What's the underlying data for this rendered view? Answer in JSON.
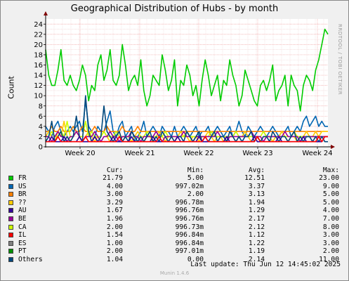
{
  "header": {
    "title": "Geographical Distribution of Hubs - by month",
    "watermark": "RRDTOOL / TOBI OETIKER",
    "version": "Munin 1.4.6"
  },
  "legend_headers": {
    "cur": "Cur:",
    "min": "Min:",
    "avg": "Avg:",
    "max": "Max:"
  },
  "legend": [
    {
      "name": "FR",
      "color": "#00cc00",
      "cur": "21.79",
      "min": "5.00",
      "avg": "12.51",
      "max": "23.00"
    },
    {
      "name": "US",
      "color": "#0066b3",
      "cur": "4.00",
      "min": "997.02m",
      "avg": "3.37",
      "max": "9.00"
    },
    {
      "name": "BR",
      "color": "#ff8000",
      "cur": "3.00",
      "min": "2.00",
      "avg": "3.13",
      "max": "5.00"
    },
    {
      "name": "??",
      "color": "#ffcc00",
      "cur": "3.29",
      "min": "996.78m",
      "avg": "1.94",
      "max": "5.00"
    },
    {
      "name": "AU",
      "color": "#330099",
      "cur": "1.67",
      "min": "996.76m",
      "avg": "1.29",
      "max": "4.00"
    },
    {
      "name": "BE",
      "color": "#990099",
      "cur": "1.96",
      "min": "996.76m",
      "avg": "2.17",
      "max": "7.00"
    },
    {
      "name": "CA",
      "color": "#ccff00",
      "cur": "2.00",
      "min": "996.73m",
      "avg": "2.12",
      "max": "8.00"
    },
    {
      "name": "IL",
      "color": "#ff0000",
      "cur": "1.54",
      "min": "996.84m",
      "avg": "1.12",
      "max": "3.00"
    },
    {
      "name": "ES",
      "color": "#808080",
      "cur": "1.00",
      "min": "996.84m",
      "avg": "1.22",
      "max": "3.00"
    },
    {
      "name": "PT",
      "color": "#008f00",
      "cur": "2.00",
      "min": "997.01m",
      "avg": "1.19",
      "max": "2.00"
    },
    {
      "name": "Others",
      "color": "#00487d",
      "cur": "1.04",
      "min": "0.00",
      "avg": "2.14",
      "max": "11.00"
    }
  ],
  "footer": {
    "last_update": "Last update:  Thu Jun 12 14:45:02 2025"
  },
  "chart_data": {
    "type": "line",
    "title": "Geographical Distribution of Hubs - by month",
    "ylabel": "Count",
    "ylim": [
      0,
      25
    ],
    "yticks": [
      0,
      2,
      4,
      6,
      8,
      10,
      12,
      14,
      16,
      18,
      20,
      22,
      24
    ],
    "xticks": [
      "Week 20",
      "Week 21",
      "Week 22",
      "Week 23",
      "Week 24"
    ],
    "grid": true,
    "series": [
      {
        "name": "FR",
        "color": "#00cc00",
        "values": [
          19,
          14,
          12,
          12,
          15,
          19,
          13,
          12,
          14,
          12,
          11,
          13,
          16,
          14,
          9,
          12,
          11,
          16,
          18,
          13,
          15,
          19,
          13,
          12,
          14,
          20,
          16,
          11,
          13,
          14,
          12,
          17,
          11,
          8,
          10,
          14,
          13,
          12,
          18,
          15,
          11,
          13,
          17,
          8,
          13,
          12,
          16,
          14,
          10,
          12,
          8,
          13,
          17,
          14,
          10,
          12,
          14,
          9,
          13,
          12,
          17,
          14,
          12,
          8,
          10,
          15,
          13,
          11,
          9,
          8,
          12,
          13,
          11,
          13,
          16,
          9,
          11,
          12,
          14,
          8,
          14,
          12,
          11,
          7,
          12,
          14,
          13,
          11,
          15,
          17,
          20,
          23,
          22
        ]
      },
      {
        "name": "US",
        "color": "#0066b3",
        "values": [
          4,
          3,
          2,
          4,
          5,
          3,
          2,
          3,
          4,
          3,
          4,
          5,
          3,
          9,
          4,
          3,
          2,
          4,
          3,
          3,
          5,
          7,
          3,
          2,
          4,
          5,
          2,
          3,
          4,
          1,
          2,
          3,
          5,
          2,
          3,
          4,
          3,
          2,
          4,
          3,
          3,
          2,
          4,
          2,
          3,
          4,
          3,
          2,
          3,
          4,
          2,
          3,
          3,
          4,
          2,
          3,
          4,
          3,
          2,
          3,
          4,
          2,
          3,
          5,
          3,
          2,
          4,
          3,
          2,
          3,
          4,
          3,
          2,
          3,
          4,
          3,
          2,
          3,
          3,
          4,
          2,
          3,
          4,
          3,
          5,
          6,
          4,
          5,
          6,
          4,
          5,
          4,
          4
        ]
      },
      {
        "name": "BR",
        "color": "#ff8000",
        "values": [
          3,
          3,
          4,
          3,
          3,
          4,
          3,
          3,
          3,
          4,
          3,
          3,
          4,
          3,
          3,
          3,
          4,
          3,
          3,
          3,
          4,
          3,
          3,
          3,
          3,
          4,
          3,
          3,
          3,
          3,
          4,
          3,
          3,
          3,
          3,
          3,
          3,
          3,
          3,
          3,
          3,
          3,
          3,
          3,
          3,
          3,
          3,
          3,
          3,
          3,
          3,
          3,
          3,
          3,
          3,
          3,
          3,
          3,
          3,
          3,
          3,
          3,
          3,
          3,
          3,
          3,
          3,
          3,
          3,
          3,
          3,
          3,
          3,
          3,
          3,
          3,
          3,
          3,
          3,
          3,
          3,
          3,
          3,
          3,
          3,
          3,
          3,
          3,
          3,
          3,
          3,
          3,
          3
        ]
      },
      {
        "name": "??",
        "color": "#ffcc00",
        "values": [
          2,
          3,
          2,
          1,
          3,
          2,
          5,
          2,
          1,
          2,
          3,
          2,
          1,
          2,
          3,
          2,
          1,
          2,
          2,
          3,
          2,
          1,
          2,
          2,
          3,
          1,
          2,
          2,
          1,
          2,
          3,
          2,
          1,
          2,
          2,
          1,
          2,
          3,
          2,
          1,
          2,
          2,
          1,
          2,
          3,
          2,
          2,
          1,
          2,
          2,
          1,
          2,
          2,
          3,
          2,
          1,
          2,
          2,
          1,
          2,
          2,
          2,
          1,
          2,
          2,
          3,
          2,
          1,
          2,
          2,
          1,
          2,
          2,
          2,
          1,
          2,
          2,
          3,
          2,
          1,
          2,
          2,
          1,
          2,
          2,
          3,
          2,
          2,
          3,
          2,
          3,
          3,
          3
        ]
      },
      {
        "name": "CA",
        "color": "#ccff00",
        "values": [
          2,
          2,
          3,
          2,
          2,
          3,
          2,
          5,
          2,
          2,
          3,
          2,
          2,
          5,
          2,
          3,
          2,
          2,
          2,
          3,
          2,
          2,
          2,
          3,
          2,
          2,
          2,
          2,
          3,
          2,
          2,
          2,
          2,
          3,
          2,
          2,
          2,
          2,
          2,
          3,
          2,
          2,
          2,
          2,
          2,
          2,
          3,
          2,
          2,
          2,
          2,
          2,
          2,
          2,
          3,
          2,
          2,
          2,
          2,
          2,
          2,
          2,
          3,
          2,
          2,
          2,
          2,
          2,
          2,
          2,
          2,
          3,
          2,
          2,
          2,
          2,
          2,
          2,
          2,
          2,
          2,
          3,
          2,
          2,
          2,
          2,
          2,
          2,
          2,
          2,
          2,
          2,
          2
        ]
      },
      {
        "name": "BE",
        "color": "#990099",
        "values": [
          2,
          2,
          1,
          2,
          3,
          2,
          2,
          1,
          2,
          2,
          3,
          2,
          1,
          2,
          2,
          2,
          3,
          2,
          1,
          2,
          2,
          3,
          2,
          2,
          1,
          2,
          2,
          2,
          3,
          2,
          2,
          1,
          2,
          2,
          2,
          2,
          3,
          2,
          1,
          2,
          2,
          2,
          2,
          2,
          2,
          3,
          2,
          2,
          1,
          2,
          2,
          2,
          2,
          2,
          2,
          2,
          3,
          2,
          2,
          1,
          2,
          2,
          2,
          2,
          2,
          2,
          2,
          3,
          2,
          2,
          2,
          1,
          2,
          2,
          2,
          2,
          2,
          2,
          3,
          2,
          2,
          2,
          2,
          1,
          2,
          2,
          2,
          2,
          2,
          2,
          2,
          2,
          2
        ]
      },
      {
        "name": "Others",
        "color": "#00487d",
        "values": [
          1,
          2,
          5,
          1,
          2,
          3,
          1,
          2,
          1,
          2,
          6,
          2,
          1,
          10,
          3,
          1,
          2,
          1,
          2,
          8,
          3,
          2,
          1,
          2,
          3,
          1,
          2,
          1,
          3,
          2,
          1,
          2,
          1,
          2,
          3,
          1,
          2,
          1,
          3,
          2,
          1,
          2,
          1,
          2,
          2,
          1,
          3,
          2,
          1,
          2,
          3,
          1,
          2,
          1,
          2,
          3,
          1,
          2,
          2,
          1,
          3,
          2,
          1,
          2,
          1,
          2,
          2,
          3,
          1,
          2,
          1,
          2,
          2,
          1,
          3,
          2,
          1,
          2,
          2,
          1,
          2,
          3,
          1,
          2,
          1,
          2,
          2,
          1,
          2,
          1,
          2,
          1,
          1
        ]
      },
      {
        "name": "AU",
        "color": "#330099",
        "values": [
          1,
          1,
          2,
          1,
          1,
          1,
          2,
          1,
          1,
          1,
          1,
          2,
          1,
          1,
          1,
          1,
          2,
          1,
          1,
          1,
          1,
          1,
          2,
          1,
          1,
          1,
          1,
          1,
          2,
          1,
          1,
          1,
          1,
          1,
          1,
          2,
          1,
          1,
          1,
          1,
          1,
          1,
          1,
          2,
          1,
          1,
          1,
          1,
          1,
          1,
          2,
          1,
          1,
          1,
          1,
          1,
          1,
          1,
          1,
          2,
          1,
          1,
          1,
          1,
          1,
          1,
          1,
          1,
          2,
          1,
          1,
          1,
          1,
          1,
          1,
          1,
          2,
          1,
          1,
          1,
          1,
          1,
          1,
          1,
          2,
          1,
          1,
          1,
          1,
          1,
          1,
          2,
          2
        ]
      },
      {
        "name": "IL",
        "color": "#ff0000",
        "values": [
          1,
          1,
          1,
          1,
          2,
          1,
          1,
          1,
          1,
          1,
          1,
          1,
          1,
          2,
          1,
          1,
          1,
          1,
          1,
          1,
          1,
          1,
          1,
          1,
          2,
          1,
          1,
          1,
          1,
          1,
          1,
          1,
          1,
          1,
          1,
          1,
          1,
          2,
          1,
          1,
          1,
          1,
          1,
          1,
          1,
          1,
          1,
          1,
          1,
          1,
          1,
          1,
          2,
          1,
          1,
          1,
          1,
          1,
          1,
          1,
          1,
          1,
          1,
          1,
          1,
          1,
          1,
          1,
          1,
          2,
          1,
          1,
          1,
          1,
          1,
          1,
          1,
          1,
          1,
          1,
          1,
          1,
          1,
          1,
          1,
          1,
          1,
          1,
          1,
          2,
          1,
          2,
          2
        ]
      }
    ]
  }
}
